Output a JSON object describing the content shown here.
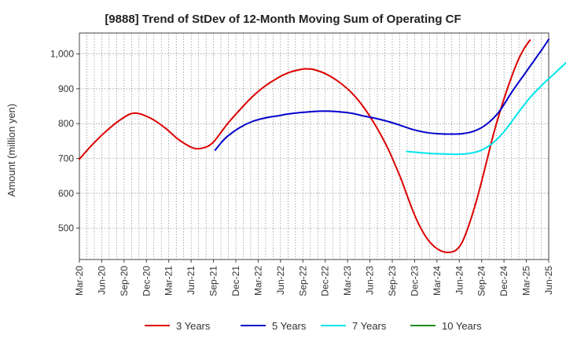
{
  "chart_data": {
    "type": "line",
    "title": "[9888]  Trend of StDev of 12-Month Moving Sum of Operating CF",
    "xlabel": "",
    "ylabel": "Amount (million yen)",
    "ylim": [
      410,
      1060
    ],
    "yticks": [
      500,
      600,
      700,
      800,
      900,
      1000
    ],
    "ytick_labels": [
      "500",
      "600",
      "700",
      "800",
      "900",
      "1,000"
    ],
    "x_tick_labels": [
      "Mar-20",
      "Jun-20",
      "Sep-20",
      "Dec-20",
      "Mar-21",
      "Jun-21",
      "Sep-21",
      "Dec-21",
      "Mar-22",
      "Jun-22",
      "Sep-22",
      "Dec-22",
      "Mar-23",
      "Jun-23",
      "Sep-23",
      "Dec-23",
      "Mar-24",
      "Jun-24",
      "Sep-24",
      "Dec-24",
      "Mar-25",
      "Jun-25"
    ],
    "x_range_months": [
      0,
      63
    ],
    "grid": true,
    "legend_position": "bottom",
    "series": [
      {
        "name": "3 Years",
        "color": "#dd0000",
        "points": [
          [
            0,
            698
          ],
          [
            2,
            738
          ],
          [
            4,
            773
          ],
          [
            6,
            803
          ],
          [
            8,
            826
          ],
          [
            9,
            830
          ],
          [
            10,
            827
          ],
          [
            12,
            811
          ],
          [
            14,
            786
          ],
          [
            16,
            755
          ],
          [
            18,
            733
          ],
          [
            19,
            728
          ],
          [
            20,
            730
          ],
          [
            21,
            737
          ],
          [
            22,
            753
          ],
          [
            24,
            800
          ],
          [
            26,
            840
          ],
          [
            28,
            877
          ],
          [
            30,
            907
          ],
          [
            32,
            930
          ],
          [
            34,
            947
          ],
          [
            36,
            956
          ],
          [
            37,
            957
          ],
          [
            38,
            955
          ],
          [
            40,
            942
          ],
          [
            42,
            920
          ],
          [
            44,
            890
          ],
          [
            46,
            848
          ],
          [
            48,
            793
          ],
          [
            50,
            727
          ],
          [
            52,
            645
          ],
          [
            53,
            597
          ],
          [
            54,
            550
          ],
          [
            55,
            510
          ],
          [
            56,
            478
          ],
          [
            57,
            455
          ],
          [
            58,
            440
          ],
          [
            59,
            432
          ],
          [
            60,
            431
          ],
          [
            61,
            437
          ],
          [
            62,
            460
          ],
          [
            63,
            505
          ],
          [
            64,
            560
          ],
          [
            65,
            625
          ],
          [
            66,
            695
          ],
          [
            67,
            766
          ],
          [
            68,
            828
          ],
          [
            69,
            884
          ],
          [
            70,
            935
          ],
          [
            71,
            980
          ],
          [
            72,
            1015
          ],
          [
            73,
            1040
          ]
        ]
      },
      {
        "name": "5 Years",
        "color": "#0000cc",
        "points": [
          [
            22,
            724
          ],
          [
            23,
            746
          ],
          [
            24,
            764
          ],
          [
            26,
            789
          ],
          [
            28,
            806
          ],
          [
            30,
            816
          ],
          [
            32,
            822
          ],
          [
            34,
            828
          ],
          [
            36,
            832
          ],
          [
            38,
            835
          ],
          [
            40,
            836
          ],
          [
            42,
            834
          ],
          [
            44,
            830
          ],
          [
            46,
            822
          ],
          [
            48,
            815
          ],
          [
            50,
            806
          ],
          [
            52,
            795
          ],
          [
            54,
            783
          ],
          [
            56,
            775
          ],
          [
            58,
            771
          ],
          [
            60,
            770
          ],
          [
            62,
            771
          ],
          [
            64,
            779
          ],
          [
            66,
            799
          ],
          [
            68,
            835
          ],
          [
            70,
            890
          ],
          [
            72,
            940
          ],
          [
            73,
            965
          ],
          [
            74,
            990
          ],
          [
            75,
            1015
          ],
          [
            76,
            1042
          ]
        ]
      },
      {
        "name": "7 Years",
        "color": "#00e5ee",
        "points": [
          [
            53,
            720
          ],
          [
            55,
            717
          ],
          [
            57,
            714
          ],
          [
            59,
            713
          ],
          [
            61,
            712
          ],
          [
            63,
            714
          ],
          [
            65,
            723
          ],
          [
            67,
            745
          ],
          [
            69,
            782
          ],
          [
            71,
            830
          ],
          [
            73,
            875
          ],
          [
            75,
            912
          ],
          [
            77,
            945
          ],
          [
            79,
            978
          ]
        ]
      },
      {
        "name": "10 Years",
        "color": "#228b22",
        "points": []
      }
    ]
  }
}
